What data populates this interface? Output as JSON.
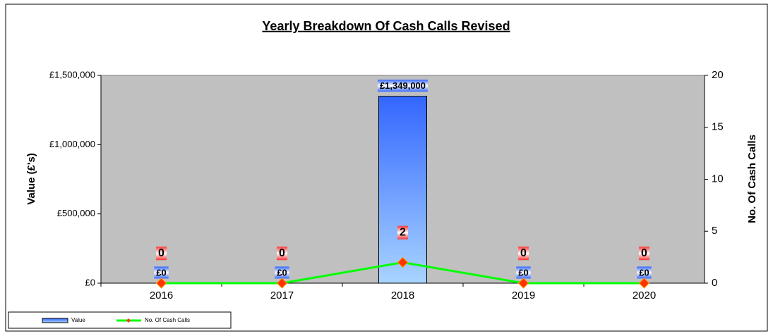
{
  "chart_data": {
    "type": "bar",
    "title": "Yearly Breakdown Of Cash Calls Revised",
    "y_label": "Value (£'s)",
    "y2_label": "No. Of Cash Calls",
    "categories": [
      "2016",
      "2017",
      "2018",
      "2019",
      "2020"
    ],
    "series": [
      {
        "name": "Value",
        "type": "bar",
        "color": "#3366ff",
        "values": [
          0,
          0,
          1349000,
          0,
          0
        ],
        "value_labels": [
          "£0",
          "£0",
          "£1,349,000",
          "£0",
          "£0"
        ]
      },
      {
        "name": "No. Of Cash Calls",
        "type": "line",
        "axis": "y2",
        "color": "#00ff00",
        "marker_color": "#ff3300",
        "values": [
          0,
          0,
          2,
          0,
          0
        ]
      }
    ],
    "ylim": [
      0,
      1500000
    ],
    "yticks": [
      {
        "value": 0,
        "label": "£0"
      },
      {
        "value": 500000,
        "label": "£500,000"
      },
      {
        "value": 1000000,
        "label": "£1,000,000"
      },
      {
        "value": 1500000,
        "label": "£1,500,000"
      }
    ],
    "y2lim": [
      0,
      20
    ],
    "y2ticks": [
      0,
      5,
      10,
      15,
      20
    ],
    "plot_background": "#c0c0c0",
    "legend": "bottom-left"
  }
}
